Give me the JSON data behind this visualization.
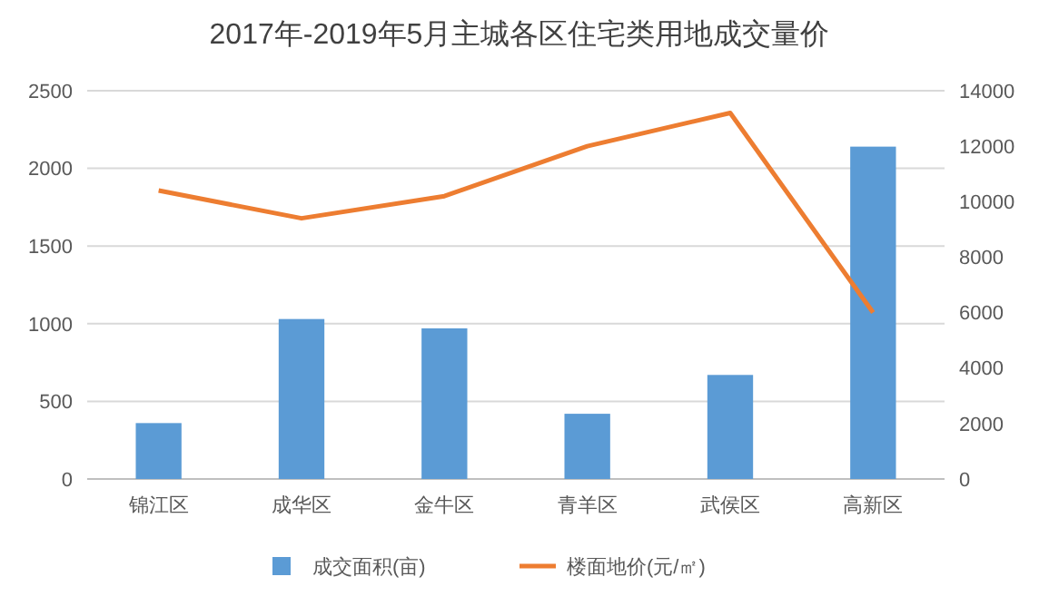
{
  "chart_data": {
    "type": "bar",
    "title": "2017年-2019年5月主城各区住宅类用地成交量价",
    "categories": [
      "锦江区",
      "成华区",
      "金牛区",
      "青羊区",
      "武侯区",
      "高新区"
    ],
    "series": [
      {
        "name": "成交面积(亩)",
        "color": "#5b9bd5",
        "values": [
          360,
          1030,
          970,
          420,
          670,
          2140
        ]
      },
      {
        "name": "楼面地价(元/㎡)",
        "type": "line",
        "axis": "y2",
        "color": "#ed7d31",
        "values": [
          10400,
          9400,
          10200,
          12000,
          13200,
          6000
        ]
      }
    ],
    "ylim": [
      0,
      2500
    ],
    "yticks": [
      0,
      500,
      1000,
      1500,
      2000,
      2500
    ],
    "y2lim": [
      0,
      14000
    ],
    "y2ticks": [
      0,
      2000,
      4000,
      6000,
      8000,
      10000,
      12000,
      14000
    ],
    "grid": "y",
    "legend": "bottom",
    "marker": "none",
    "line_style": "solid"
  }
}
